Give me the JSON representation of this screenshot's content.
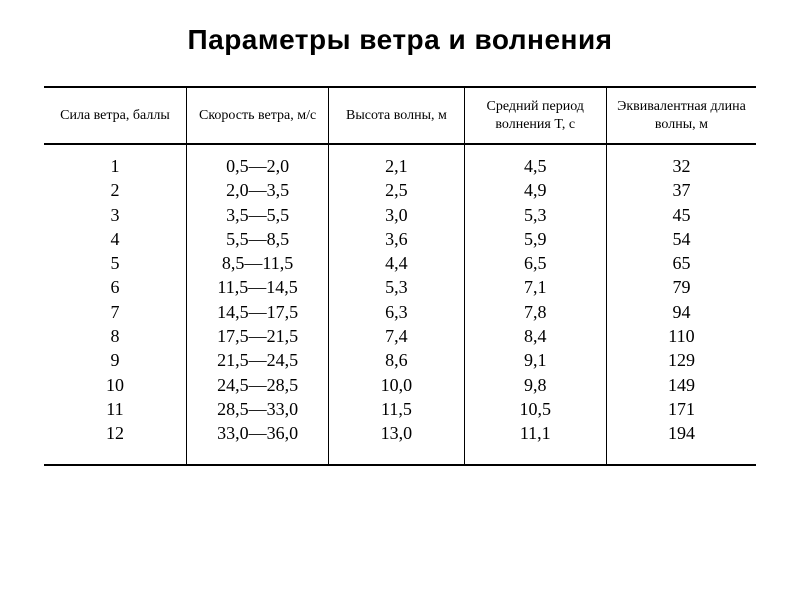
{
  "title": "Параметры ветра и волнения",
  "table": {
    "type": "table",
    "background_color": "#ffffff",
    "text_color": "#000000",
    "rule_color": "#000000",
    "header_fontsize": 14,
    "body_fontsize": 18,
    "columns": [
      {
        "label": "Сила ветра, баллы",
        "width_pct": 20,
        "align": "center"
      },
      {
        "label": "Скорость ветра, м/с",
        "width_pct": 20,
        "align": "center"
      },
      {
        "label": "Высота волны, м",
        "width_pct": 19,
        "align": "center"
      },
      {
        "label": "Средний период волнения T, с",
        "width_pct": 20,
        "align": "center"
      },
      {
        "label": "Эквивалентная длина волны, м",
        "width_pct": 21,
        "align": "center"
      }
    ],
    "rows": [
      [
        "1",
        "0,5—2,0",
        "2,1",
        "4,5",
        "32"
      ],
      [
        "2",
        "2,0—3,5",
        "2,5",
        "4,9",
        "37"
      ],
      [
        "3",
        "3,5—5,5",
        "3,0",
        "5,3",
        "45"
      ],
      [
        "4",
        "5,5—8,5",
        "3,6",
        "5,9",
        "54"
      ],
      [
        "5",
        "8,5—11,5",
        "4,4",
        "6,5",
        "65"
      ],
      [
        "6",
        "11,5—14,5",
        "5,3",
        "7,1",
        "79"
      ],
      [
        "7",
        "14,5—17,5",
        "6,3",
        "7,8",
        "94"
      ],
      [
        "8",
        "17,5—21,5",
        "7,4",
        "8,4",
        "110"
      ],
      [
        "9",
        "21,5—24,5",
        "8,6",
        "9,1",
        "129"
      ],
      [
        "10",
        "24,5—28,5",
        "10,0",
        "9,8",
        "149"
      ],
      [
        "11",
        "28,5—33,0",
        "11,5",
        "10,5",
        "171"
      ],
      [
        "12",
        "33,0—36,0",
        "13,0",
        "11,1",
        "194"
      ]
    ]
  }
}
